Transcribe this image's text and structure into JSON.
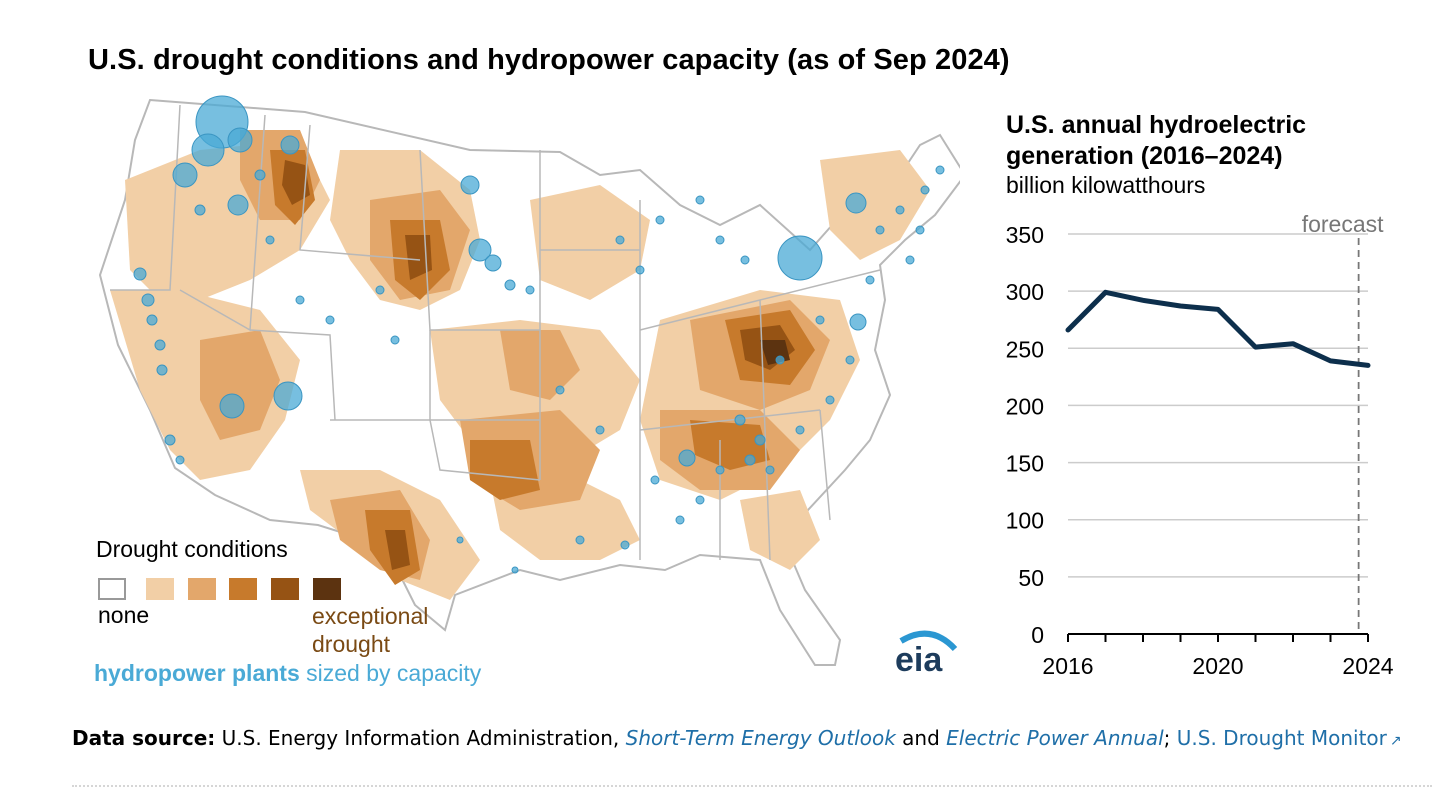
{
  "title": "U.S. drought conditions and hydropower capacity (as of Sep 2024)",
  "map": {
    "legend_title": "Drought conditions",
    "legend_none": "none",
    "legend_exceptional": "exceptional drought",
    "drought_colors": [
      "#ffffff",
      "#f2cfa6",
      "#e3a76b",
      "#c77a2c",
      "#965314",
      "#5c3310"
    ],
    "hydro_label_bold": "hydropower plants",
    "hydro_label_rest": "sized by capacity",
    "hydro_color": "#4aaad6",
    "logo_text": "eia"
  },
  "chart_data": {
    "type": "line",
    "title": "U.S. annual hydroelectric generation (2016–2024)",
    "ylabel": "billion kilowatthours",
    "x": [
      2016,
      2017,
      2018,
      2019,
      2020,
      2021,
      2022,
      2023,
      2024
    ],
    "series": [
      {
        "values": [
          266,
          299,
          292,
          287,
          284,
          251,
          254,
          239,
          235
        ]
      }
    ],
    "ylim": [
      0,
      350
    ],
    "yticks": [
      0,
      50,
      100,
      150,
      200,
      250,
      300,
      350
    ],
    "xticks": [
      2016,
      2020,
      2024
    ],
    "xtick_labels": [
      "2016",
      "2020",
      "2024"
    ],
    "xlim": [
      2016,
      2024
    ],
    "forecast_label": "forecast",
    "forecast_x": 2023.75,
    "grid": true,
    "line_color": "#0d2f4c"
  },
  "source": {
    "label": "Data source:",
    "text1": " U.S. Energy Information Administration, ",
    "link1": "Short-Term Energy Outlook",
    "text2": " and ",
    "link2": "Electric Power Annual",
    "text3": "; ",
    "link3": "U.S. Drought Monitor",
    "link3_icon": "↗"
  }
}
